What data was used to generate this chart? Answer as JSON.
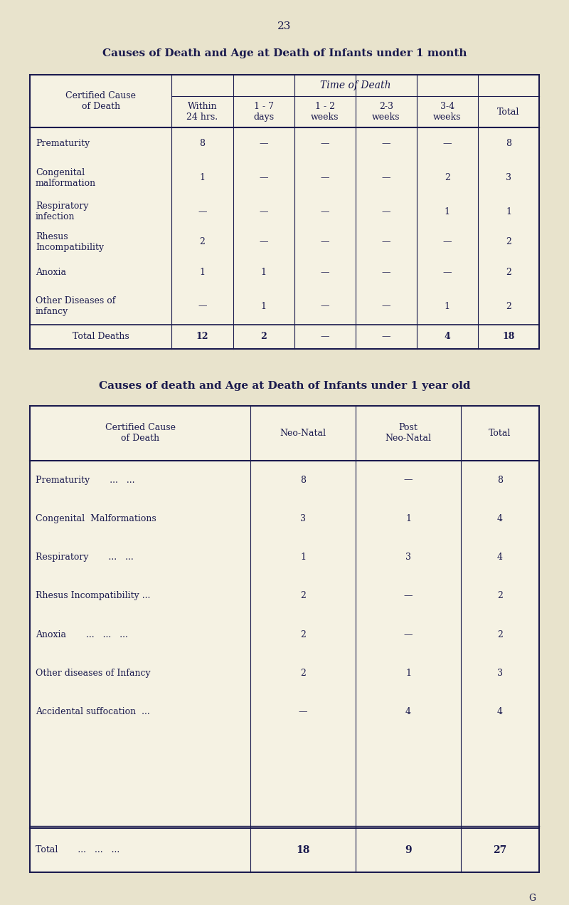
{
  "bg_color": "#e8e3cc",
  "table_bg": "#f5f2e3",
  "text_color": "#1a1a4e",
  "page_number": "23",
  "table1": {
    "title": "Causes of Death and Age at Death of Infants under 1 month",
    "time_of_death_label": "Time of Death",
    "col0_header": "Certified Cause\nof Death",
    "col_headers": [
      "Within\n24 hrs.",
      "1 - 7\ndays",
      "1 - 2\nweeks",
      "2-3\nweeks",
      "3-4\nweeks",
      "Total"
    ],
    "rows": [
      [
        "Prematurity",
        "8",
        "—",
        "—",
        "—",
        "—",
        "8"
      ],
      [
        "Congenital\nmalformation",
        "1",
        "—",
        "—",
        "—",
        "2",
        "3"
      ],
      [
        "Respiratory\ninfection",
        "—",
        "—",
        "—",
        "—",
        "1",
        "1"
      ],
      [
        "Rhesus\nIncompatibility",
        "2",
        "—",
        "—",
        "—",
        "—",
        "2"
      ],
      [
        "Anoxia",
        "1",
        "1",
        "—",
        "—",
        "—",
        "2"
      ],
      [
        "Other Diseases of\ninfancy",
        "—",
        "1",
        "—",
        "—",
        "1",
        "2"
      ]
    ],
    "total_row": [
      "Total Deaths",
      "12",
      "2",
      "—",
      "—",
      "4",
      "18"
    ]
  },
  "table2": {
    "title": "Causes of death and Age at Death of Infants under 1 year old",
    "col0_header": "Certified Cause\nof Death",
    "col_headers": [
      "Neo-Natal",
      "Post\nNeo-Natal",
      "Total"
    ],
    "rows": [
      [
        "Prematurity       ...   ...",
        "8",
        "—",
        "8"
      ],
      [
        "Congenital  Malformations",
        "3",
        "1",
        "4"
      ],
      [
        "Respiratory       ...   ...",
        "1",
        "3",
        "4"
      ],
      [
        "Rhesus Incompatibility ...",
        "2",
        "—",
        "2"
      ],
      [
        "Anoxia       ...   ...   ...",
        "2",
        "—",
        "2"
      ],
      [
        "Other diseases of Infancy",
        "2",
        "1",
        "3"
      ],
      [
        "Accidental suffocation  ...",
        "—",
        "4",
        "4"
      ]
    ],
    "total_row": [
      "Total       ...   ...   ...",
      "18",
      "9",
      "27"
    ]
  }
}
